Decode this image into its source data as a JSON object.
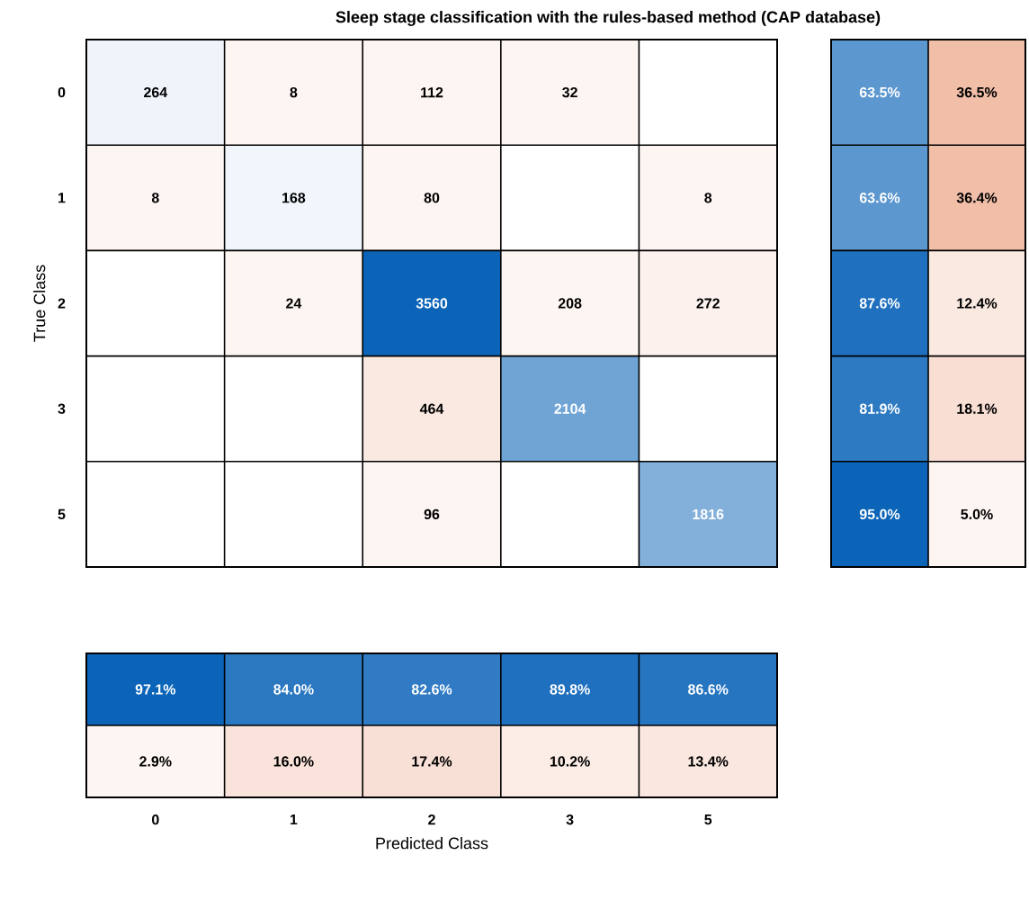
{
  "chart_data": [
    {
      "type": "heatmap",
      "title": "Sleep stage classification with the rules-based method (CAP database)",
      "ylabel": "True Class",
      "categories": [
        "0",
        "1",
        "2",
        "3",
        "5"
      ],
      "y_categories": [
        "0",
        "1",
        "2",
        "3",
        "5"
      ],
      "tick_labels": "y",
      "cells": [
        [
          264,
          8,
          112,
          32,
          null
        ],
        [
          8,
          168,
          80,
          null,
          8
        ],
        [
          null,
          24,
          3560,
          208,
          272
        ],
        [
          null,
          null,
          464,
          2104,
          null
        ],
        [
          null,
          null,
          96,
          null,
          1816
        ]
      ],
      "cell_labels": [
        [
          "264",
          "8",
          "112",
          "32",
          null
        ],
        [
          "8",
          "168",
          "80",
          null,
          "8"
        ],
        [
          null,
          "24",
          "3560",
          "208",
          "272"
        ],
        [
          null,
          null,
          "464",
          "2104",
          null
        ],
        [
          null,
          null,
          "96",
          null,
          "1816"
        ]
      ]
    },
    {
      "type": "heatmap",
      "categories": [
        null,
        null
      ],
      "y_categories": [
        null,
        null,
        null,
        null,
        null
      ],
      "tick_labels": false,
      "cells": [
        [
          63.5,
          36.5
        ],
        [
          63.6,
          36.4
        ],
        [
          87.6,
          12.4
        ],
        [
          81.9,
          18.1
        ],
        [
          95.0,
          5.0
        ]
      ],
      "cell_labels": [
        [
          "63.5%",
          "36.5%"
        ],
        [
          "63.6%",
          "36.4%"
        ],
        [
          "87.6%",
          "12.4%"
        ],
        [
          "81.9%",
          "18.1%"
        ],
        [
          "95.0%",
          "5.0%"
        ]
      ]
    },
    {
      "type": "heatmap",
      "xlabel": "Predicted Class",
      "categories": [
        "0",
        "1",
        "2",
        "3",
        "5"
      ],
      "y_categories": [
        null,
        null
      ],
      "tick_labels": "x",
      "cells": [
        [
          97.1,
          84.0,
          82.6,
          89.8,
          86.6
        ],
        [
          2.9,
          16.0,
          17.4,
          10.2,
          13.4
        ]
      ],
      "cell_labels": [
        [
          "97.1%",
          "84.0%",
          "82.6%",
          "89.8%",
          "86.6%"
        ],
        [
          "2.9%",
          "16.0%",
          "17.4%",
          "10.2%",
          "13.4%"
        ]
      ]
    }
  ]
}
